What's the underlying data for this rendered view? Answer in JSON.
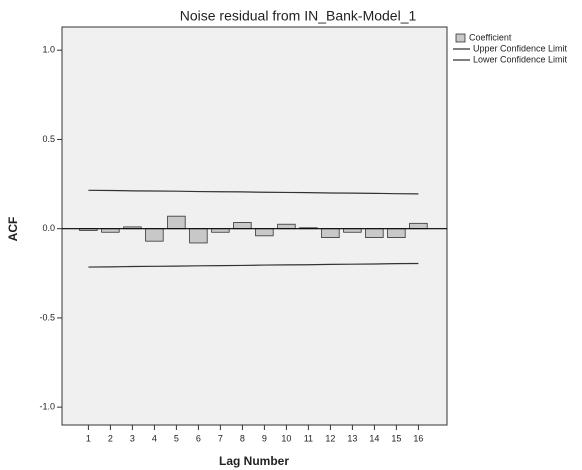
{
  "chart_data": {
    "type": "bar",
    "title": "Noise residual from IN_Bank-Model_1",
    "x_label": "Lag Number",
    "y_label": "ACF",
    "x": [
      1,
      2,
      3,
      4,
      5,
      6,
      7,
      8,
      9,
      10,
      11,
      12,
      13,
      14,
      15,
      16
    ],
    "xlim": [
      -0.2,
      17.3
    ],
    "xticks": [
      1,
      2,
      3,
      4,
      5,
      6,
      7,
      8,
      9,
      10,
      11,
      12,
      13,
      14,
      15,
      16
    ],
    "ylim": [
      -1.1,
      1.13
    ],
    "yticks": [
      {
        "value": -1,
        "label": "-1.0"
      },
      {
        "value": -0.5,
        "label": "-0.5"
      },
      {
        "value": 0,
        "label": "0.0"
      },
      {
        "value": 0.5,
        "label": "0.5"
      },
      {
        "value": 1,
        "label": "1.0"
      }
    ],
    "series": [
      {
        "name": "Coefficient",
        "type": "bar",
        "color": "#c8c8c8",
        "values": [
          -0.01,
          -0.02,
          0.01,
          -0.07,
          0.07,
          -0.08,
          -0.02,
          0.035,
          -0.04,
          0.025,
          0.005,
          -0.05,
          -0.02,
          -0.05,
          -0.05,
          0.03
        ]
      },
      {
        "name": "Upper Confidence Limit",
        "type": "line",
        "color": "#333333",
        "values": [
          0.215,
          0.214,
          0.212,
          0.211,
          0.21,
          0.208,
          0.207,
          0.206,
          0.204,
          0.203,
          0.202,
          0.2,
          0.199,
          0.198,
          0.196,
          0.195
        ]
      },
      {
        "name": "Lower Confidence Limit",
        "type": "line",
        "color": "#333333",
        "values": [
          -0.215,
          -0.214,
          -0.212,
          -0.211,
          -0.21,
          -0.208,
          -0.207,
          -0.206,
          -0.204,
          -0.203,
          -0.202,
          -0.2,
          -0.199,
          -0.198,
          -0.196,
          -0.195
        ]
      }
    ]
  }
}
